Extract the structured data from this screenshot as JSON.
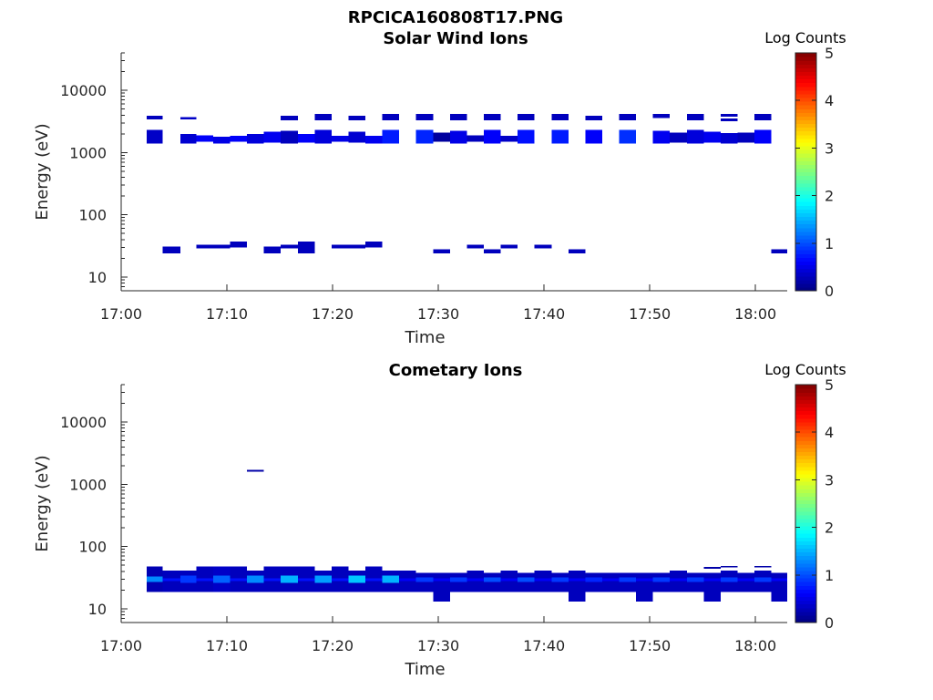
{
  "figure_title": "RPCICA160808T17.PNG",
  "chart_data": [
    {
      "type": "heatmap",
      "title": "Solar Wind Ions",
      "xlabel": "Time",
      "ylabel": "Energy (eV)",
      "x_ticks": [
        "17:00",
        "17:10",
        "17:20",
        "17:30",
        "17:40",
        "17:50",
        "18:00"
      ],
      "y_ticks": [
        "10",
        "100",
        "1000",
        "10000"
      ],
      "y_scale": "log",
      "ylim": [
        6,
        40000
      ],
      "xlim_minutes_after_1700": [
        0,
        63
      ],
      "colorbar": {
        "label": "Log Counts",
        "range": [
          0,
          5
        ],
        "ticks": [
          "0",
          "1",
          "2",
          "3",
          "4",
          "5"
        ],
        "colormap": "jet"
      },
      "cells_t_emin_emax_value": [
        [
          2.4,
          3.9,
          3400,
          3900,
          0.3
        ],
        [
          5.6,
          7.1,
          3400,
          3700,
          0.35
        ],
        [
          2.4,
          3.9,
          1400,
          2300,
          0.35
        ],
        [
          5.6,
          7.1,
          1400,
          2000,
          0.4
        ],
        [
          7.1,
          8.7,
          1500,
          1900,
          0.6
        ],
        [
          8.7,
          10.3,
          1400,
          1800,
          0.5
        ],
        [
          10.3,
          11.9,
          1500,
          1850,
          0.6
        ],
        [
          11.9,
          13.5,
          1400,
          2000,
          0.45
        ],
        [
          13.5,
          15.1,
          1450,
          2150,
          0.55
        ],
        [
          15.1,
          16.7,
          1400,
          2250,
          0.3
        ],
        [
          16.7,
          18.3,
          1450,
          2000,
          0.6
        ],
        [
          18.3,
          19.9,
          1400,
          2300,
          0.45
        ],
        [
          19.9,
          21.5,
          1500,
          1850,
          0.5
        ],
        [
          21.5,
          23.1,
          1450,
          2150,
          0.4
        ],
        [
          23.1,
          24.7,
          1400,
          1850,
          0.55
        ],
        [
          24.7,
          26.3,
          1400,
          2300,
          0.75
        ],
        [
          27.9,
          29.5,
          1400,
          2300,
          0.8
        ],
        [
          29.5,
          31.1,
          1500,
          2100,
          0.15
        ],
        [
          31.1,
          32.7,
          1400,
          2250,
          0.5
        ],
        [
          32.7,
          34.3,
          1500,
          1900,
          0.3
        ],
        [
          34.3,
          35.9,
          1400,
          2300,
          0.6
        ],
        [
          35.9,
          37.5,
          1500,
          1850,
          0.35
        ],
        [
          37.5,
          39.1,
          1400,
          2300,
          0.7
        ],
        [
          40.7,
          42.3,
          1400,
          2300,
          0.75
        ],
        [
          43.9,
          45.5,
          1400,
          2300,
          0.6
        ],
        [
          47.1,
          48.7,
          1400,
          2300,
          0.85
        ],
        [
          50.3,
          51.9,
          1400,
          2250,
          0.55
        ],
        [
          51.9,
          53.5,
          1450,
          2100,
          0.3
        ],
        [
          53.5,
          55.1,
          1400,
          2300,
          0.45
        ],
        [
          55.1,
          56.7,
          1450,
          2150,
          0.55
        ],
        [
          56.7,
          58.3,
          1400,
          2050,
          0.4
        ],
        [
          58.3,
          59.9,
          1450,
          2100,
          0.3
        ],
        [
          59.9,
          61.5,
          1400,
          2300,
          0.6
        ],
        [
          15.1,
          16.7,
          3300,
          3900,
          0.3
        ],
        [
          18.3,
          19.9,
          3300,
          4200,
          0.3
        ],
        [
          21.5,
          23.1,
          3300,
          3900,
          0.3
        ],
        [
          24.7,
          26.3,
          3300,
          4200,
          0.3
        ],
        [
          27.9,
          29.5,
          3300,
          4200,
          0.3
        ],
        [
          31.1,
          32.7,
          3300,
          4200,
          0.3
        ],
        [
          34.3,
          35.9,
          3300,
          4200,
          0.3
        ],
        [
          37.5,
          39.1,
          3300,
          4200,
          0.3
        ],
        [
          40.7,
          42.3,
          3300,
          4200,
          0.3
        ],
        [
          43.9,
          45.5,
          3300,
          3900,
          0.3
        ],
        [
          47.1,
          48.7,
          3300,
          4200,
          0.3
        ],
        [
          50.3,
          51.9,
          3600,
          4200,
          0.3
        ],
        [
          53.5,
          55.1,
          3300,
          4200,
          0.3
        ],
        [
          56.7,
          58.3,
          3800,
          4200,
          0.3
        ],
        [
          56.7,
          58.3,
          3200,
          3500,
          0.3
        ],
        [
          59.9,
          61.5,
          3300,
          4200,
          0.3
        ],
        [
          3.9,
          5.6,
          24,
          31,
          0.3
        ],
        [
          7.1,
          8.7,
          29,
          33,
          0.3
        ],
        [
          8.7,
          10.3,
          29,
          33,
          0.3
        ],
        [
          10.3,
          11.9,
          30,
          37,
          0.3
        ],
        [
          13.5,
          15.1,
          24,
          31,
          0.3
        ],
        [
          15.1,
          16.7,
          29,
          33,
          0.3
        ],
        [
          16.7,
          18.3,
          24,
          37,
          0.3
        ],
        [
          19.9,
          21.5,
          29,
          33,
          0.3
        ],
        [
          21.5,
          23.1,
          29,
          33,
          0.3
        ],
        [
          23.1,
          24.7,
          30,
          37,
          0.3
        ],
        [
          29.5,
          31.1,
          24,
          28,
          0.3
        ],
        [
          32.7,
          34.3,
          29,
          33,
          0.3
        ],
        [
          34.3,
          35.9,
          24,
          28,
          0.3
        ],
        [
          35.9,
          37.5,
          29,
          33,
          0.3
        ],
        [
          39.1,
          40.7,
          29,
          33,
          0.3
        ],
        [
          42.3,
          43.9,
          24,
          28,
          0.3
        ],
        [
          61.5,
          63.0,
          24,
          28,
          0.3
        ]
      ]
    },
    {
      "type": "heatmap",
      "title": "Cometary Ions",
      "xlabel": "Time",
      "ylabel": "Energy (eV)",
      "x_ticks": [
        "17:00",
        "17:10",
        "17:20",
        "17:30",
        "17:40",
        "17:50",
        "18:00"
      ],
      "y_ticks": [
        "10",
        "100",
        "1000",
        "10000"
      ],
      "y_scale": "log",
      "ylim": [
        6,
        40000
      ],
      "xlim_minutes_after_1700": [
        0,
        63
      ],
      "colorbar": {
        "label": "Log Counts",
        "range": [
          0,
          5
        ],
        "ticks": [
          "0",
          "1",
          "2",
          "3",
          "4",
          "5"
        ],
        "colormap": "jet"
      },
      "cells_t_emin_emax_value": [
        [
          11.9,
          13.5,
          1600,
          1700,
          0.2
        ],
        [
          2.4,
          3.9,
          18.5,
          48,
          0.25
        ],
        [
          3.9,
          5.6,
          18.5,
          41,
          0.3
        ],
        [
          5.6,
          7.1,
          18.5,
          41,
          0.3
        ],
        [
          7.1,
          8.7,
          18.5,
          48,
          0.3
        ],
        [
          8.7,
          10.3,
          18.5,
          48,
          0.35
        ],
        [
          10.3,
          11.9,
          18.5,
          48,
          0.3
        ],
        [
          11.9,
          13.5,
          18.5,
          41,
          0.3
        ],
        [
          13.5,
          15.1,
          18.5,
          48,
          0.3
        ],
        [
          15.1,
          16.7,
          18.5,
          48,
          0.3
        ],
        [
          16.7,
          18.3,
          18.5,
          48,
          0.3
        ],
        [
          18.3,
          19.9,
          18.5,
          41,
          0.3
        ],
        [
          19.9,
          21.5,
          18.5,
          48,
          0.3
        ],
        [
          21.5,
          23.1,
          18.5,
          41,
          0.3
        ],
        [
          23.1,
          24.7,
          18.5,
          48,
          0.3
        ],
        [
          24.7,
          26.3,
          18.5,
          41,
          0.3
        ],
        [
          26.3,
          27.9,
          18.5,
          41,
          0.3
        ],
        [
          27.9,
          29.5,
          18.5,
          38,
          0.3
        ],
        [
          29.5,
          31.1,
          13,
          38,
          0.3
        ],
        [
          31.1,
          32.7,
          18.5,
          38,
          0.3
        ],
        [
          32.7,
          34.3,
          18.5,
          41,
          0.3
        ],
        [
          34.3,
          35.9,
          18.5,
          38,
          0.3
        ],
        [
          35.9,
          37.5,
          18.5,
          41,
          0.3
        ],
        [
          37.5,
          39.1,
          18.5,
          38,
          0.3
        ],
        [
          39.1,
          40.7,
          18.5,
          41,
          0.3
        ],
        [
          40.7,
          42.3,
          18.5,
          38,
          0.3
        ],
        [
          42.3,
          43.9,
          13,
          41,
          0.3
        ],
        [
          43.9,
          45.5,
          18.5,
          38,
          0.3
        ],
        [
          45.5,
          47.1,
          18.5,
          38,
          0.3
        ],
        [
          47.1,
          48.7,
          18.5,
          38,
          0.3
        ],
        [
          48.7,
          50.3,
          13,
          38,
          0.3
        ],
        [
          50.3,
          51.9,
          18.5,
          38,
          0.3
        ],
        [
          51.9,
          53.5,
          18.5,
          41,
          0.3
        ],
        [
          53.5,
          55.1,
          18.5,
          38,
          0.3
        ],
        [
          55.1,
          56.7,
          13,
          38,
          0.3
        ],
        [
          56.7,
          58.3,
          18.5,
          41,
          0.3
        ],
        [
          58.3,
          59.9,
          18.5,
          38,
          0.3
        ],
        [
          59.9,
          61.5,
          18.5,
          41,
          0.3
        ],
        [
          61.5,
          63.0,
          13,
          38,
          0.3
        ],
        [
          55.1,
          56.7,
          44,
          47,
          0.2
        ],
        [
          56.7,
          58.3,
          46,
          49,
          0.2
        ],
        [
          59.9,
          61.5,
          46,
          49,
          0.2
        ],
        [
          2.4,
          3.9,
          27,
          33,
          1.3
        ],
        [
          5.6,
          7.1,
          26,
          34,
          0.9
        ],
        [
          8.7,
          10.3,
          26,
          34,
          1.1
        ],
        [
          11.9,
          13.5,
          26,
          34,
          1.3
        ],
        [
          15.1,
          16.7,
          26,
          34,
          1.5
        ],
        [
          18.3,
          19.9,
          26,
          34,
          1.4
        ],
        [
          21.5,
          23.1,
          26,
          34,
          1.6
        ],
        [
          24.7,
          26.3,
          26,
          34,
          1.5
        ],
        [
          27.9,
          29.5,
          27,
          32,
          0.9
        ],
        [
          31.1,
          32.7,
          27,
          32,
          0.9
        ],
        [
          34.3,
          35.9,
          27,
          32,
          1.0
        ],
        [
          37.5,
          39.1,
          27,
          32,
          1.0
        ],
        [
          40.7,
          42.3,
          27,
          32,
          0.9
        ],
        [
          43.9,
          45.5,
          27,
          32,
          0.8
        ],
        [
          47.1,
          48.7,
          27,
          32,
          0.9
        ],
        [
          50.3,
          51.9,
          27,
          32,
          0.9
        ],
        [
          53.5,
          55.1,
          27,
          32,
          0.9
        ],
        [
          56.7,
          58.3,
          27,
          32,
          0.9
        ],
        [
          59.9,
          61.5,
          27,
          32,
          0.9
        ],
        [
          3.9,
          5.6,
          28,
          31,
          0.7
        ],
        [
          7.1,
          8.7,
          28,
          31,
          0.7
        ],
        [
          10.3,
          11.9,
          28,
          31,
          0.7
        ],
        [
          13.5,
          15.1,
          28,
          31,
          0.7
        ],
        [
          16.7,
          18.3,
          28,
          31,
          0.7
        ],
        [
          19.9,
          21.5,
          28,
          31,
          0.7
        ],
        [
          23.1,
          24.7,
          28,
          31,
          0.7
        ],
        [
          26.3,
          27.9,
          28,
          31,
          0.6
        ],
        [
          29.5,
          31.1,
          28,
          31,
          0.6
        ],
        [
          32.7,
          34.3,
          28,
          31,
          0.6
        ],
        [
          35.9,
          37.5,
          28,
          31,
          0.6
        ],
        [
          39.1,
          40.7,
          28,
          31,
          0.6
        ],
        [
          42.3,
          43.9,
          28,
          31,
          0.6
        ],
        [
          45.5,
          47.1,
          28,
          31,
          0.6
        ],
        [
          48.7,
          50.3,
          28,
          31,
          0.6
        ],
        [
          51.9,
          53.5,
          28,
          31,
          0.6
        ],
        [
          55.1,
          56.7,
          28,
          31,
          0.6
        ],
        [
          58.3,
          59.9,
          28,
          31,
          0.6
        ],
        [
          61.5,
          63.0,
          28,
          31,
          0.6
        ]
      ]
    }
  ]
}
